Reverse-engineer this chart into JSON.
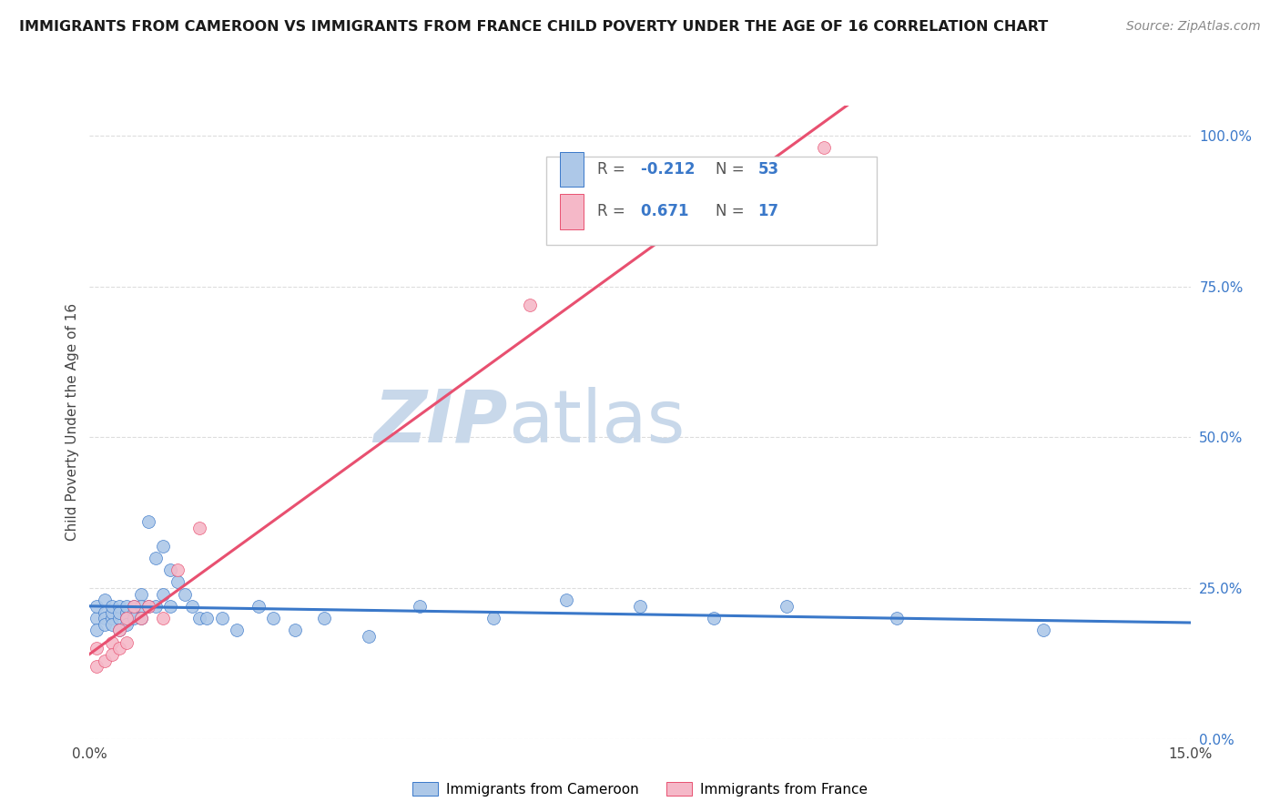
{
  "title": "IMMIGRANTS FROM CAMEROON VS IMMIGRANTS FROM FRANCE CHILD POVERTY UNDER THE AGE OF 16 CORRELATION CHART",
  "source": "Source: ZipAtlas.com",
  "ylabel": "Child Poverty Under the Age of 16",
  "legend_label1": "Immigrants from Cameroon",
  "legend_label2": "Immigrants from France",
  "r1": -0.212,
  "n1": 53,
  "r2": 0.671,
  "n2": 17,
  "color1": "#adc8e8",
  "color2": "#f5b8c8",
  "line_color1": "#3a78c9",
  "line_color2": "#e85070",
  "line_color_r": "#3a78c9",
  "bg_color": "#ffffff",
  "grid_color": "#dddddd",
  "xlim": [
    0.0,
    0.15
  ],
  "ylim": [
    0.0,
    1.05
  ],
  "ytick_vals": [
    0.0,
    0.25,
    0.5,
    0.75,
    1.0
  ],
  "xtick_vals": [
    0.0,
    0.15
  ],
  "scatter1_x": [
    0.001,
    0.001,
    0.001,
    0.002,
    0.002,
    0.002,
    0.002,
    0.003,
    0.003,
    0.003,
    0.003,
    0.004,
    0.004,
    0.004,
    0.004,
    0.005,
    0.005,
    0.005,
    0.005,
    0.006,
    0.006,
    0.006,
    0.007,
    0.007,
    0.007,
    0.008,
    0.008,
    0.009,
    0.009,
    0.01,
    0.01,
    0.011,
    0.011,
    0.012,
    0.013,
    0.014,
    0.015,
    0.016,
    0.018,
    0.02,
    0.023,
    0.025,
    0.028,
    0.032,
    0.038,
    0.045,
    0.055,
    0.065,
    0.075,
    0.085,
    0.095,
    0.11,
    0.13
  ],
  "scatter1_y": [
    0.2,
    0.22,
    0.18,
    0.21,
    0.2,
    0.19,
    0.23,
    0.2,
    0.21,
    0.19,
    0.22,
    0.2,
    0.22,
    0.21,
    0.18,
    0.21,
    0.2,
    0.22,
    0.19,
    0.22,
    0.21,
    0.2,
    0.24,
    0.22,
    0.2,
    0.36,
    0.22,
    0.3,
    0.22,
    0.32,
    0.24,
    0.28,
    0.22,
    0.26,
    0.24,
    0.22,
    0.2,
    0.2,
    0.2,
    0.18,
    0.22,
    0.2,
    0.18,
    0.2,
    0.17,
    0.22,
    0.2,
    0.23,
    0.22,
    0.2,
    0.22,
    0.2,
    0.18
  ],
  "scatter2_x": [
    0.001,
    0.001,
    0.002,
    0.003,
    0.003,
    0.004,
    0.004,
    0.005,
    0.005,
    0.006,
    0.007,
    0.008,
    0.01,
    0.012,
    0.015,
    0.06,
    0.1
  ],
  "scatter2_y": [
    0.12,
    0.15,
    0.13,
    0.16,
    0.14,
    0.15,
    0.18,
    0.16,
    0.2,
    0.22,
    0.2,
    0.22,
    0.2,
    0.28,
    0.35,
    0.72,
    0.98
  ],
  "watermark_zip": "ZIP",
  "watermark_atlas": "atlas",
  "watermark_color": "#c8d8ea"
}
